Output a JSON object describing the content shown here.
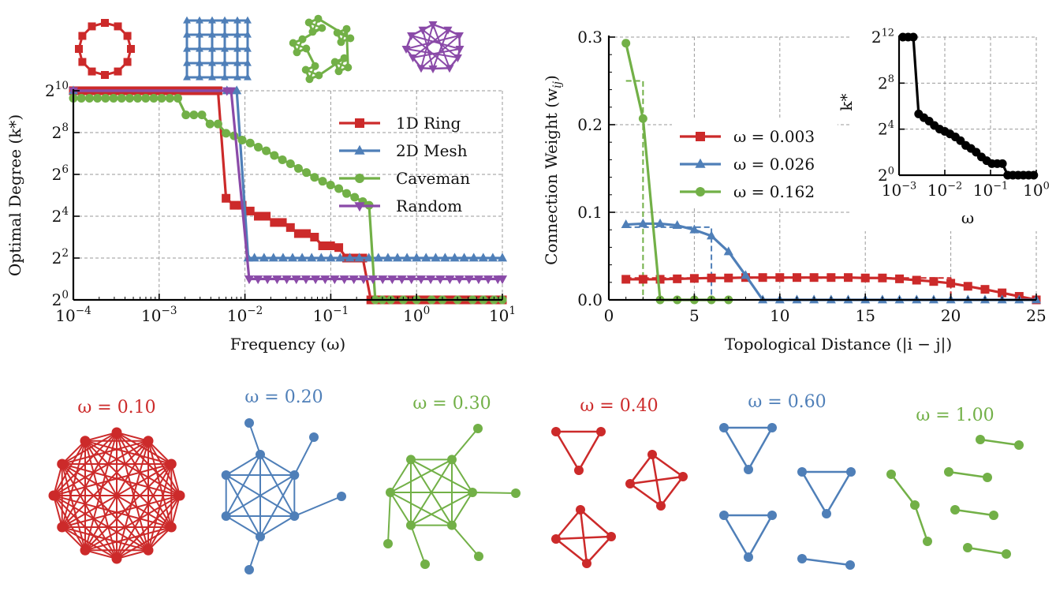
{
  "colors": {
    "red": "#cc2a2a",
    "blue": "#4f7fb8",
    "green": "#72b047",
    "purple": "#8a4aa8",
    "black": "#000000",
    "grid": "#9a9a9a"
  },
  "chart_data": [
    {
      "id": "optimal-degree",
      "type": "line",
      "xscale": "log",
      "yscale": "log2",
      "xlabel": "Frequency (ω)",
      "ylabel": "Optimal Degree (k*)",
      "xlim": [
        0.0001,
        10
      ],
      "ylim": [
        1,
        1024
      ],
      "xticks": [
        {
          "v": 0.0001,
          "base": "10",
          "exp": "−4"
        },
        {
          "v": 0.001,
          "base": "10",
          "exp": "−3"
        },
        {
          "v": 0.01,
          "base": "10",
          "exp": "−2"
        },
        {
          "v": 0.1,
          "base": "10",
          "exp": "−1"
        },
        {
          "v": 1,
          "base": "10",
          "exp": "0"
        },
        {
          "v": 10,
          "base": "10",
          "exp": "1"
        }
      ],
      "yticks": [
        {
          "v": 1,
          "base": "2",
          "exp": "0"
        },
        {
          "v": 4,
          "base": "2",
          "exp": "2"
        },
        {
          "v": 16,
          "base": "2",
          "exp": "4"
        },
        {
          "v": 64,
          "base": "2",
          "exp": "6"
        },
        {
          "v": 256,
          "base": "2",
          "exp": "8"
        },
        {
          "v": 1024,
          "base": "2",
          "exp": "10"
        }
      ],
      "grid": true,
      "legend_position": "right",
      "series": [
        {
          "name": "1D Ring",
          "color": "red",
          "marker": "square",
          "x": [
            0.0001,
            0.000124,
            0.000154,
            0.000191,
            0.000237,
            0.000294,
            0.000365,
            0.000453,
            0.000562,
            0.000697,
            0.000865,
            0.00107,
            0.00133,
            0.00165,
            0.00205,
            0.00254,
            0.00315,
            0.00391,
            0.00485,
            0.00602,
            0.00747,
            0.00927,
            0.0115,
            0.0143,
            0.0177,
            0.022,
            0.0273,
            0.0339,
            0.042,
            0.0521,
            0.0647,
            0.0803,
            0.0996,
            0.124,
            0.153,
            0.19,
            0.236,
            0.293,
            0.364,
            0.451,
            0.56,
            0.695,
            0.862,
            1.07,
            1.33,
            1.65,
            2.04,
            2.54,
            3.15,
            3.9,
            4.85,
            6.01,
            7.46,
            9.26,
            10
          ],
          "y": [
            1024,
            1024,
            1024,
            1024,
            1024,
            1024,
            1024,
            1024,
            1024,
            1024,
            1024,
            1024,
            1024,
            1024,
            1024,
            1024,
            1024,
            1024,
            1024,
            29,
            23,
            23,
            19,
            16,
            16,
            13,
            13,
            11,
            9,
            9,
            8,
            6,
            6,
            5.66,
            4,
            4,
            4,
            1,
            1,
            1,
            1,
            1,
            1,
            1,
            1,
            1,
            1,
            1,
            1,
            1,
            1,
            1,
            1,
            1,
            1
          ]
        },
        {
          "name": "2D Mesh",
          "color": "blue",
          "marker": "triangle-up",
          "x": [
            0.0001,
            0.00617,
            0.00802,
            0.0109,
            0.0129,
            0.0167,
            0.0215,
            0.0278,
            0.0359,
            0.0464,
            0.0599,
            0.0774,
            0.1,
            0.129,
            0.167,
            0.215,
            0.278,
            0.359,
            0.464,
            0.599,
            0.774,
            1,
            1.29,
            1.67,
            2.15,
            2.78,
            3.59,
            4.64,
            5.99,
            7.74,
            10
          ],
          "y": [
            1024,
            1024,
            1024,
            4,
            4,
            4,
            4,
            4,
            4,
            4,
            4,
            4,
            4,
            4,
            4,
            4,
            4,
            4,
            4,
            4,
            4,
            4,
            4,
            4,
            4,
            4,
            4,
            4,
            4,
            4,
            4
          ]
        },
        {
          "name": "Caveman",
          "color": "green",
          "marker": "circle",
          "x": [
            0.0001,
            0.000124,
            0.000154,
            0.000191,
            0.000237,
            0.000294,
            0.000365,
            0.000453,
            0.000562,
            0.000697,
            0.000865,
            0.00107,
            0.00133,
            0.00165,
            0.00205,
            0.00254,
            0.00315,
            0.00391,
            0.00485,
            0.00602,
            0.00747,
            0.00927,
            0.0115,
            0.0143,
            0.0177,
            0.022,
            0.0273,
            0.0339,
            0.042,
            0.0521,
            0.0647,
            0.0803,
            0.0996,
            0.124,
            0.153,
            0.19,
            0.236,
            0.28,
            0.33,
            0.4,
            0.5,
            0.7,
            1,
            1.5,
            2,
            3,
            4.5,
            6,
            8,
            10
          ],
          "y": [
            800,
            800,
            800,
            800,
            800,
            800,
            800,
            800,
            800,
            800,
            800,
            800,
            800,
            800,
            460,
            460,
            460,
            340,
            340,
            250,
            230,
            200,
            181,
            158,
            140,
            120,
            104,
            91,
            78,
            68,
            58,
            51,
            45,
            40,
            34,
            30,
            26,
            23,
            1,
            1,
            1,
            1,
            1,
            1,
            1,
            1,
            1,
            1,
            1,
            1
          ]
        },
        {
          "name": "Random",
          "color": "purple",
          "marker": "triangle-down",
          "x": [
            0.0001,
            0.00617,
            0.0069,
            0.0112,
            0.0142,
            0.0183,
            0.0237,
            0.0307,
            0.0397,
            0.0514,
            0.0665,
            0.086,
            0.111,
            0.144,
            0.186,
            0.241,
            0.311,
            0.403,
            0.521,
            0.674,
            0.872,
            1.13,
            1.46,
            1.89,
            2.44,
            3.16,
            4.09,
            5.29,
            6.84,
            8.85,
            10
          ],
          "y": [
            1024,
            1024,
            1024,
            2,
            2,
            2,
            2,
            2,
            2,
            2,
            2,
            2,
            2,
            2,
            2,
            2,
            2,
            2,
            2,
            2,
            2,
            2,
            2,
            2,
            2,
            2,
            2,
            2,
            2,
            2,
            2
          ]
        }
      ]
    },
    {
      "id": "connection-weight",
      "type": "line",
      "xlabel": "Topological Distance (|i − j|)",
      "ylabel": "Connection Weight (w_ij)",
      "xlim": [
        0,
        25
      ],
      "ylim": [
        0,
        0.3
      ],
      "xticks": [
        "0",
        "5",
        "10",
        "15",
        "20",
        "25"
      ],
      "yticks": [
        "0.0",
        "0.1",
        "0.2",
        "0.3"
      ],
      "grid": true,
      "legend_position": "center",
      "series": [
        {
          "name": "ω = 0.003",
          "color": "red",
          "marker": "square",
          "x": [
            1,
            2,
            3,
            4,
            5,
            6,
            7,
            8,
            9,
            10,
            11,
            12,
            13,
            14,
            15,
            16,
            17,
            18,
            19,
            20,
            21,
            22,
            23,
            24,
            25
          ],
          "y": [
            0.0235,
            0.0235,
            0.0235,
            0.024,
            0.0245,
            0.025,
            0.025,
            0.0255,
            0.0255,
            0.0255,
            0.0255,
            0.0255,
            0.0255,
            0.0255,
            0.025,
            0.025,
            0.024,
            0.0225,
            0.021,
            0.019,
            0.0155,
            0.012,
            0.008,
            0.004,
            0.0
          ],
          "step": {
            "x": [
              1,
              20
            ],
            "y": 0.025
          }
        },
        {
          "name": "ω = 0.026",
          "color": "blue",
          "marker": "triangle-up",
          "x": [
            1,
            2,
            3,
            4,
            5,
            6,
            7,
            8,
            9,
            10,
            11,
            12,
            13,
            14,
            15,
            16,
            17,
            18,
            19,
            20,
            21,
            22,
            23,
            24,
            25
          ],
          "y": [
            0.086,
            0.087,
            0.087,
            0.085,
            0.08,
            0.073,
            0.055,
            0.028,
            0,
            0,
            0,
            0,
            0,
            0,
            0,
            0,
            0,
            0,
            0,
            0,
            0,
            0,
            0,
            0,
            0
          ],
          "step": {
            "x": [
              1,
              6
            ],
            "y": 0.083
          }
        },
        {
          "name": "ω = 0.162",
          "color": "green",
          "marker": "circle",
          "x": [
            1,
            2,
            3,
            4,
            5,
            6,
            7
          ],
          "y": [
            0.293,
            0.207,
            0,
            0,
            0,
            0,
            0
          ],
          "step": {
            "x": [
              1,
              2
            ],
            "y": 0.25
          }
        }
      ]
    },
    {
      "id": "inset-k-vs-omega",
      "type": "line",
      "xscale": "log",
      "yscale": "log2",
      "xlabel": "ω",
      "ylabel": "k*",
      "xlim": [
        0.001,
        1
      ],
      "ylim": [
        1,
        4096
      ],
      "xticks": [
        {
          "v": 0.001,
          "base": "10",
          "exp": "−3"
        },
        {
          "v": 0.01,
          "base": "10",
          "exp": "−2"
        },
        {
          "v": 0.1,
          "base": "10",
          "exp": "−1"
        },
        {
          "v": 1,
          "base": "10",
          "exp": "0"
        }
      ],
      "yticks": [
        {
          "v": 1,
          "base": "2",
          "exp": "0"
        },
        {
          "v": 16,
          "base": "2",
          "exp": "4"
        },
        {
          "v": 256,
          "base": "2",
          "exp": "8"
        },
        {
          "v": 4096,
          "base": "2",
          "exp": "12"
        }
      ],
      "series": [
        {
          "name": "k*",
          "color": "black",
          "marker": "circle",
          "x": [
            0.00121,
            0.00158,
            0.00205,
            0.00268,
            0.00349,
            0.00454,
            0.00591,
            0.0077,
            0.01,
            0.013,
            0.017,
            0.022,
            0.0287,
            0.0373,
            0.0486,
            0.0632,
            0.0824,
            0.107,
            0.14,
            0.182,
            0.237,
            0.308,
            0.401,
            0.522,
            0.68,
            0.88
          ],
          "y": [
            4096,
            4096,
            4096,
            40,
            32,
            26,
            20,
            16,
            14,
            12,
            10,
            8,
            6,
            5,
            4,
            3,
            2.4,
            2,
            2,
            2,
            1,
            1,
            1,
            1,
            1,
            1
          ]
        }
      ]
    }
  ],
  "topology_icons": [
    {
      "name": "1D Ring",
      "color": "red"
    },
    {
      "name": "2D Mesh",
      "color": "blue"
    },
    {
      "name": "Caveman",
      "color": "green"
    },
    {
      "name": "Random",
      "color": "purple"
    }
  ],
  "graphs": [
    {
      "label": "ω = 0.10",
      "color": "red"
    },
    {
      "label": "ω = 0.20",
      "color": "blue"
    },
    {
      "label": "ω = 0.30",
      "color": "green"
    },
    {
      "label": "ω = 0.40",
      "color": "red"
    },
    {
      "label": "ω = 0.60",
      "color": "blue"
    },
    {
      "label": "ω = 1.00",
      "color": "green"
    }
  ]
}
